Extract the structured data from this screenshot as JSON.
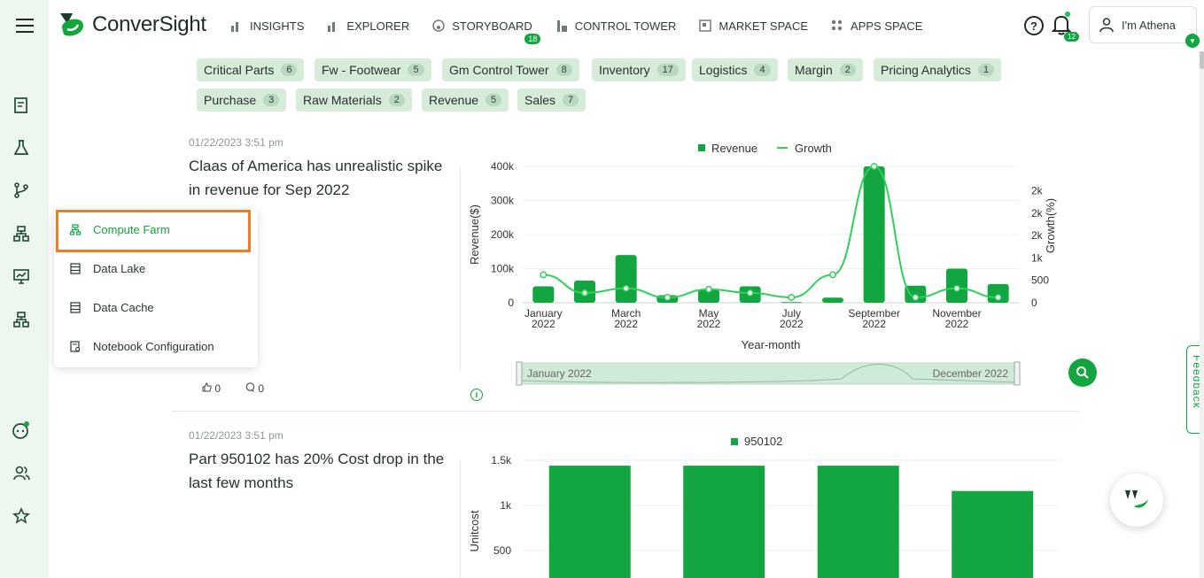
{
  "app": {
    "brand": "ConverSight",
    "colors": {
      "accent": "#12a540",
      "rail_bg": "#eef7ee",
      "highlight": "#f07d25"
    }
  },
  "nav": {
    "items": [
      {
        "label": "INSIGHTS",
        "icon": "bar-chart-icon"
      },
      {
        "label": "EXPLORER",
        "icon": "bar-chart-icon"
      },
      {
        "label": "STORYBOARD",
        "icon": "palette-icon"
      },
      {
        "label": "CONTROL TOWER",
        "icon": "tower-icon"
      },
      {
        "label": "MARKET SPACE",
        "icon": "store-icon"
      },
      {
        "label": "APPS SPACE",
        "icon": "apps-grid-icon"
      }
    ],
    "storyboard_badge": "18"
  },
  "header": {
    "notification_count": "12",
    "user_label": "I'm Athena"
  },
  "tags": [
    {
      "label": "Critical Parts",
      "count": "6"
    },
    {
      "label": "Fw - Footwear",
      "count": "5"
    },
    {
      "label": "Gm Control Tower",
      "count": "8"
    },
    {
      "label": "Inventory",
      "count": "17"
    },
    {
      "label": "Logistics",
      "count": "4"
    },
    {
      "label": "Margin",
      "count": "2"
    },
    {
      "label": "Pricing Analytics",
      "count": "1"
    },
    {
      "label": "Purchase",
      "count": "3"
    },
    {
      "label": "Raw Materials",
      "count": "2"
    },
    {
      "label": "Revenue",
      "count": "5"
    },
    {
      "label": "Sales",
      "count": "7"
    }
  ],
  "popup_menu": {
    "items": [
      {
        "label": "Compute Farm"
      },
      {
        "label": "Data Lake"
      },
      {
        "label": "Data Cache"
      },
      {
        "label": "Notebook Configuration"
      }
    ]
  },
  "insights": [
    {
      "timestamp": "01/22/2023 3:51 pm",
      "title": "Claas of America has unrealistic spike in revenue for Sep 2022",
      "likes": "0",
      "comments": "0",
      "range_start": "January 2022",
      "range_end": "December 2022"
    },
    {
      "timestamp": "01/22/2023 3:51 pm",
      "title": "Part 950102 has 20% Cost drop in the last few months"
    }
  ],
  "feedback_label": "Feedback",
  "chart_data": [
    {
      "type": "bar",
      "title": "",
      "xlabel": "Year-month",
      "ylabel": "Revenue($)",
      "y2label": "Growth(%)",
      "legend": [
        "Revenue",
        "Growth"
      ],
      "legend_position": "top",
      "categories": [
        "2022-01",
        "2022-02",
        "2022-03",
        "2022-04",
        "2022-05",
        "2022-06",
        "2022-07",
        "2022-08",
        "2022-09",
        "2022-10",
        "2022-11",
        "2022-12"
      ],
      "x_tick_labels": [
        {
          "month": "January",
          "year": "2022",
          "index": 0
        },
        {
          "month": "March",
          "year": "2022",
          "index": 2
        },
        {
          "month": "May",
          "year": "2022",
          "index": 4
        },
        {
          "month": "July",
          "year": "2022",
          "index": 6
        },
        {
          "month": "September",
          "year": "2022",
          "index": 8
        },
        {
          "month": "November",
          "year": "2022",
          "index": 10
        }
      ],
      "series": [
        {
          "name": "Revenue",
          "type": "bar",
          "values": [
            48000,
            65000,
            140000,
            22000,
            38000,
            48000,
            2000,
            15000,
            400000,
            50000,
            100000,
            55000
          ]
        },
        {
          "name": "Growth",
          "type": "line",
          "axis": "right",
          "values": [
            400,
            0,
            100,
            -100,
            80,
            0,
            -100,
            400,
            2800,
            -100,
            100,
            -100
          ]
        }
      ],
      "ylim": [
        0,
        400000
      ],
      "y_ticks": [
        "0",
        "100k",
        "200k",
        "300k",
        "400k"
      ],
      "y2lim": [
        0,
        2800
      ],
      "y2_ticks": [
        "0",
        "500",
        "1k",
        "2k",
        "2k",
        "2k"
      ],
      "grid": true
    },
    {
      "type": "bar",
      "title": "",
      "ylabel": "Unitcost",
      "legend": [
        "950102"
      ],
      "legend_position": "top",
      "series": [
        {
          "name": "950102",
          "values": [
            1440,
            1440,
            1440,
            1160
          ]
        }
      ],
      "ylim": [
        0,
        1500
      ],
      "y_ticks": [
        "500",
        "1k",
        "1.5k"
      ],
      "grid": true
    }
  ]
}
